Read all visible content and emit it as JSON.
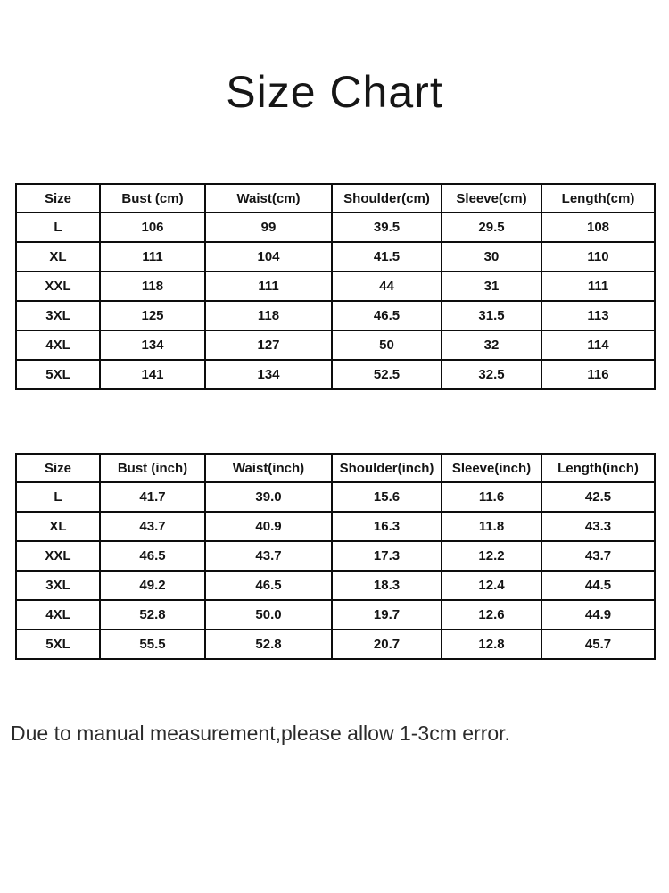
{
  "page": {
    "title": "Size Chart",
    "note": "Due to manual measurement,please allow 1-3cm error."
  },
  "colors": {
    "background": "#ffffff",
    "text": "#141414",
    "table_border": "#0d0d0d"
  },
  "chart_data": [
    {
      "type": "table",
      "name": "size-chart-cm",
      "unit": "cm",
      "columns": [
        "Size",
        "Bust (cm)",
        "Waist(cm)",
        "Shoulder(cm)",
        "Sleeve(cm)",
        "Length(cm)"
      ],
      "rows": [
        [
          "L",
          "106",
          "99",
          "39.5",
          "29.5",
          "108"
        ],
        [
          "XL",
          "111",
          "104",
          "41.5",
          "30",
          "110"
        ],
        [
          "XXL",
          "118",
          "111",
          "44",
          "31",
          "111"
        ],
        [
          "3XL",
          "125",
          "118",
          "46.5",
          "31.5",
          "113"
        ],
        [
          "4XL",
          "134",
          "127",
          "50",
          "32",
          "114"
        ],
        [
          "5XL",
          "141",
          "134",
          "52.5",
          "32.5",
          "116"
        ]
      ]
    },
    {
      "type": "table",
      "name": "size-chart-inch",
      "unit": "inch",
      "columns": [
        "Size",
        "Bust (inch)",
        "Waist(inch)",
        "Shoulder(inch)",
        "Sleeve(inch)",
        "Length(inch)"
      ],
      "rows": [
        [
          "L",
          "41.7",
          "39.0",
          "15.6",
          "11.6",
          "42.5"
        ],
        [
          "XL",
          "43.7",
          "40.9",
          "16.3",
          "11.8",
          "43.3"
        ],
        [
          "XXL",
          "46.5",
          "43.7",
          "17.3",
          "12.2",
          "43.7"
        ],
        [
          "3XL",
          "49.2",
          "46.5",
          "18.3",
          "12.4",
          "44.5"
        ],
        [
          "4XL",
          "52.8",
          "50.0",
          "19.7",
          "12.6",
          "44.9"
        ],
        [
          "5XL",
          "55.5",
          "52.8",
          "20.7",
          "12.8",
          "45.7"
        ]
      ]
    }
  ]
}
